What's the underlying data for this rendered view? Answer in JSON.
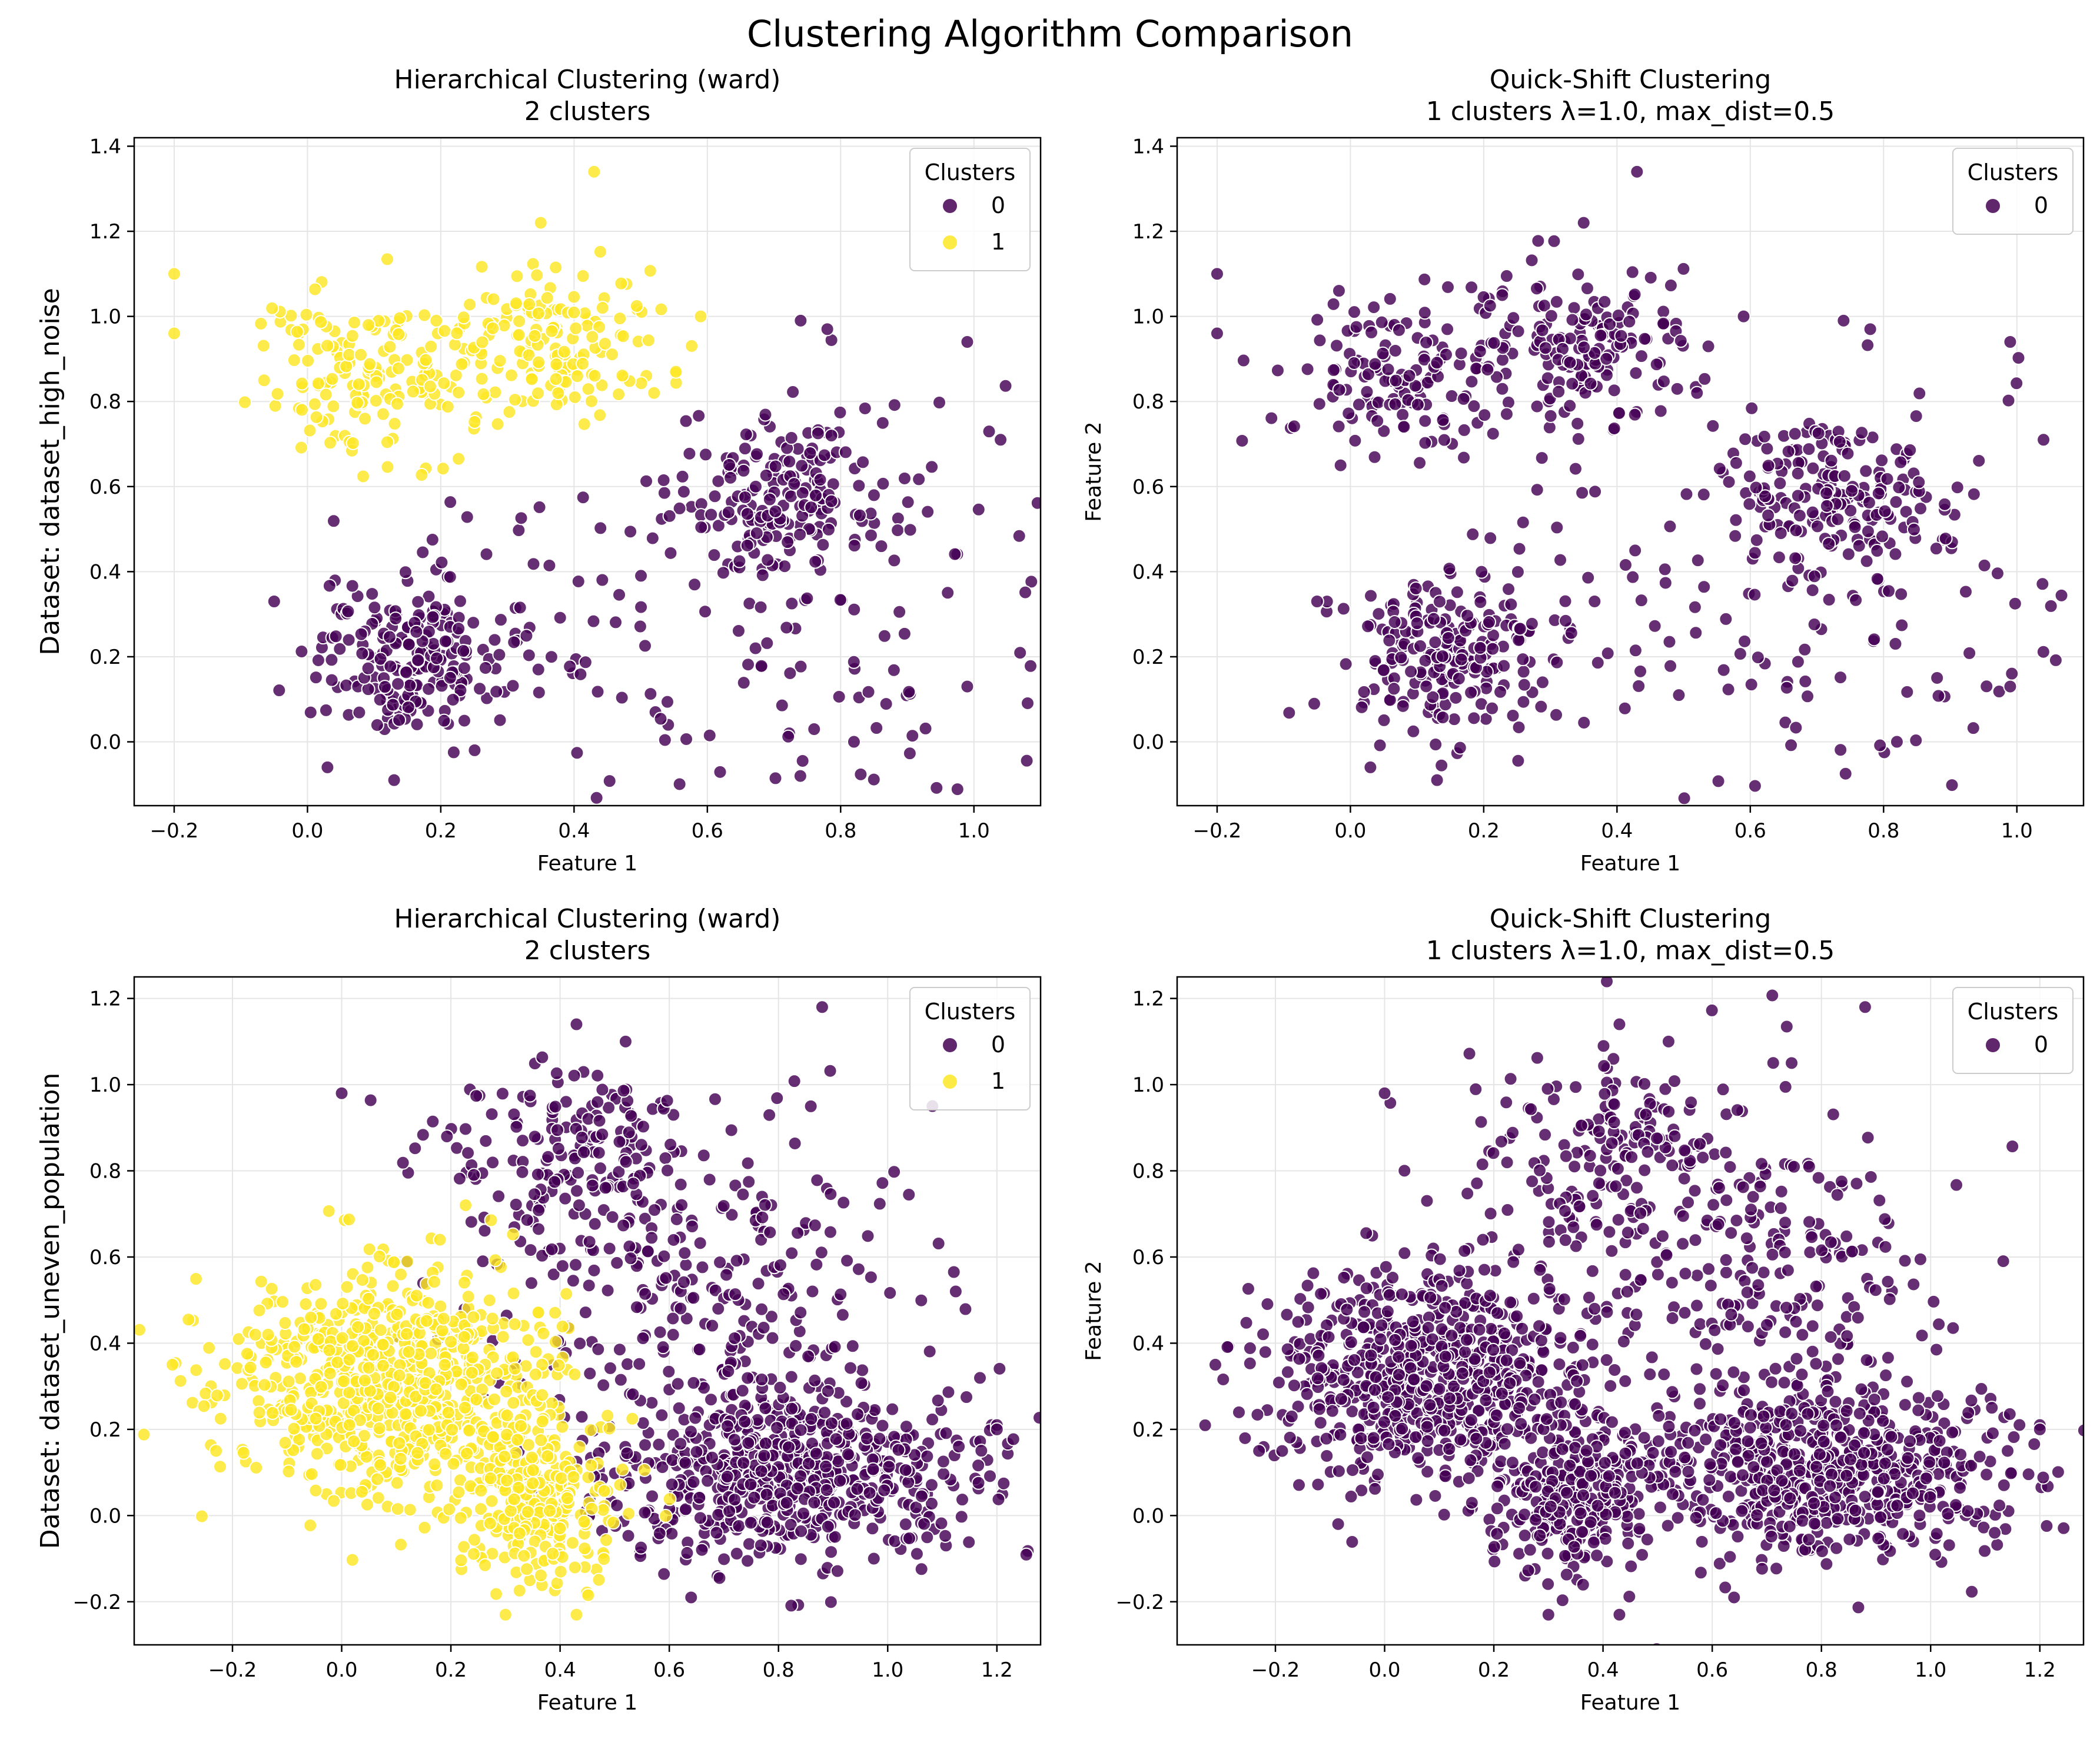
{
  "figure": {
    "suptitle": "Clustering Algorithm Comparison"
  },
  "colors": {
    "cluster_0": "#440154",
    "cluster_1": "#fde725",
    "grid": "#e5e5e5",
    "axis": "#000000",
    "marker_edge": "#ffffff"
  },
  "chart_data": [
    {
      "type": "scatter",
      "panel": "top-left",
      "title": "Hierarchical Clustering (ward)\n2 clusters",
      "xlabel": "Feature 1",
      "ylabel": "Dataset: dataset_high_noise",
      "xlim": [
        -0.26,
        1.1
      ],
      "ylim": [
        -0.15,
        1.42
      ],
      "xticks": [
        -0.2,
        0.0,
        0.2,
        0.4,
        0.6,
        0.8,
        1.0
      ],
      "xtick_labels": [
        "−0.2",
        "0.0",
        "0.2",
        "0.4",
        "0.6",
        "0.8",
        "1.0"
      ],
      "yticks": [
        0.0,
        0.2,
        0.4,
        0.6,
        0.8,
        1.0,
        1.2,
        1.4
      ],
      "ytick_labels": [
        "0.0",
        "0.2",
        "0.4",
        "0.6",
        "0.8",
        "1.0",
        "1.2",
        "1.4"
      ],
      "grid": true,
      "legend": {
        "title": "Clusters",
        "placement": "top-right",
        "entries": [
          {
            "label": "0",
            "color": "#440154"
          },
          {
            "label": "1",
            "color": "#fde725"
          }
        ]
      },
      "series": [
        {
          "name": "0",
          "color": "#440154",
          "points": [
            {
              "cx": 0.15,
              "cy": 0.2,
              "sx": 0.07,
              "sy": 0.09,
              "n": 200
            },
            {
              "cx": 0.72,
              "cy": 0.58,
              "sx": 0.08,
              "sy": 0.09,
              "n": 170
            },
            {
              "cx": 0.75,
              "cy": 0.3,
              "sx": 0.2,
              "sy": 0.25,
              "n": 110
            },
            {
              "cx": 0.4,
              "cy": 0.3,
              "sx": 0.2,
              "sy": 0.2,
              "n": 60
            }
          ],
          "samples": [
            [
              0.74,
              0.99
            ],
            [
              0.78,
              0.97
            ],
            [
              1.04,
              0.71
            ],
            [
              0.99,
              0.94
            ],
            [
              0.13,
              -0.09
            ],
            [
              0.03,
              -0.06
            ],
            [
              0.82,
              0.0
            ],
            [
              -0.05,
              0.33
            ],
            [
              0.99,
              0.13
            ]
          ]
        },
        {
          "name": "1",
          "color": "#fde725",
          "points": [
            {
              "cx": 0.08,
              "cy": 0.86,
              "sx": 0.09,
              "sy": 0.1,
              "n": 150
            },
            {
              "cx": 0.36,
              "cy": 0.93,
              "sx": 0.08,
              "sy": 0.09,
              "n": 160
            }
          ],
          "samples": [
            [
              0.43,
              1.34
            ],
            [
              0.35,
              1.22
            ],
            [
              -0.2,
              1.1
            ],
            [
              -0.2,
              0.96
            ],
            [
              0.59,
              1.0
            ],
            [
              0.52,
              0.82
            ]
          ]
        }
      ]
    },
    {
      "type": "scatter",
      "panel": "top-right",
      "title": "Quick-Shift Clustering\n1 clusters λ=1.0, max_dist=0.5",
      "xlabel": "Feature 1",
      "ylabel": "Feature 2",
      "xlim": [
        -0.26,
        1.1
      ],
      "ylim": [
        -0.15,
        1.42
      ],
      "xticks": [
        -0.2,
        0.0,
        0.2,
        0.4,
        0.6,
        0.8,
        1.0
      ],
      "xtick_labels": [
        "−0.2",
        "0.0",
        "0.2",
        "0.4",
        "0.6",
        "0.8",
        "1.0"
      ],
      "yticks": [
        0.0,
        0.2,
        0.4,
        0.6,
        0.8,
        1.0,
        1.2,
        1.4
      ],
      "ytick_labels": [
        "0.0",
        "0.2",
        "0.4",
        "0.6",
        "0.8",
        "1.0",
        "1.2",
        "1.4"
      ],
      "grid": true,
      "legend": {
        "title": "Clusters",
        "placement": "top-right",
        "entries": [
          {
            "label": "0",
            "color": "#440154"
          }
        ]
      },
      "series": [
        {
          "name": "0",
          "color": "#440154",
          "points": [
            {
              "cx": 0.15,
              "cy": 0.2,
              "sx": 0.07,
              "sy": 0.09,
              "n": 200
            },
            {
              "cx": 0.72,
              "cy": 0.58,
              "sx": 0.08,
              "sy": 0.09,
              "n": 170
            },
            {
              "cx": 0.75,
              "cy": 0.3,
              "sx": 0.2,
              "sy": 0.25,
              "n": 110
            },
            {
              "cx": 0.4,
              "cy": 0.3,
              "sx": 0.2,
              "sy": 0.2,
              "n": 60
            },
            {
              "cx": 0.08,
              "cy": 0.86,
              "sx": 0.09,
              "sy": 0.1,
              "n": 150
            },
            {
              "cx": 0.36,
              "cy": 0.93,
              "sx": 0.08,
              "sy": 0.09,
              "n": 160
            }
          ],
          "samples": [
            [
              0.74,
              0.99
            ],
            [
              0.78,
              0.97
            ],
            [
              1.04,
              0.71
            ],
            [
              0.99,
              0.94
            ],
            [
              0.13,
              -0.09
            ],
            [
              0.03,
              -0.06
            ],
            [
              0.82,
              0.0
            ],
            [
              -0.05,
              0.33
            ],
            [
              0.99,
              0.13
            ],
            [
              0.43,
              1.34
            ],
            [
              0.35,
              1.22
            ],
            [
              -0.2,
              1.1
            ],
            [
              -0.2,
              0.96
            ],
            [
              0.59,
              1.0
            ],
            [
              0.52,
              0.82
            ]
          ]
        }
      ]
    },
    {
      "type": "scatter",
      "panel": "bottom-left",
      "title": "Hierarchical Clustering (ward)\n2 clusters",
      "xlabel": "Feature 1",
      "ylabel": "Dataset: dataset_uneven_population",
      "xlim": [
        -0.38,
        1.28
      ],
      "ylim": [
        -0.3,
        1.25
      ],
      "xticks": [
        -0.2,
        0.0,
        0.2,
        0.4,
        0.6,
        0.8,
        1.0,
        1.2
      ],
      "xtick_labels": [
        "−0.2",
        "0.0",
        "0.2",
        "0.4",
        "0.6",
        "0.8",
        "1.0",
        "1.2"
      ],
      "yticks": [
        -0.2,
        0.0,
        0.2,
        0.4,
        0.6,
        0.8,
        1.0,
        1.2
      ],
      "ytick_labels": [
        "−0.2",
        "0.0",
        "0.2",
        "0.4",
        "0.6",
        "0.8",
        "1.0",
        "1.2"
      ],
      "grid": true,
      "legend": {
        "title": "Clusters",
        "placement": "top-right",
        "entries": [
          {
            "label": "0",
            "color": "#440154"
          },
          {
            "label": "1",
            "color": "#fde725"
          }
        ]
      },
      "series": [
        {
          "name": "0",
          "color": "#440154",
          "points": [
            {
              "cx": 0.82,
              "cy": 0.1,
              "sx": 0.16,
              "sy": 0.1,
              "n": 650
            },
            {
              "cx": 0.45,
              "cy": 0.87,
              "sx": 0.1,
              "sy": 0.1,
              "n": 120
            },
            {
              "cx": 0.65,
              "cy": 0.55,
              "sx": 0.2,
              "sy": 0.2,
              "n": 260
            },
            {
              "cx": 0.3,
              "cy": 0.8,
              "sx": 0.12,
              "sy": 0.12,
              "n": 40
            }
          ],
          "samples": [
            [
              0.88,
              1.18
            ],
            [
              1.2,
              0.21
            ],
            [
              1.2,
              0.2
            ],
            [
              0.43,
              1.14
            ],
            [
              0.52,
              1.1
            ],
            [
              0.0,
              0.98
            ],
            [
              0.64,
              -0.19
            ]
          ]
        },
        {
          "name": "1",
          "color": "#fde725",
          "points": [
            {
              "cx": 0.08,
              "cy": 0.32,
              "sx": 0.14,
              "sy": 0.13,
              "n": 700
            },
            {
              "cx": 0.35,
              "cy": 0.05,
              "sx": 0.08,
              "sy": 0.1,
              "n": 300
            }
          ],
          "samples": [
            [
              -0.31,
              0.35
            ],
            [
              -0.23,
              0.15
            ],
            [
              0.3,
              -0.23
            ],
            [
              0.43,
              -0.23
            ],
            [
              0.18,
              0.64
            ]
          ]
        }
      ]
    },
    {
      "type": "scatter",
      "panel": "bottom-right",
      "title": "Quick-Shift Clustering\n1 clusters λ=1.0, max_dist=0.5",
      "xlabel": "Feature 1",
      "ylabel": "Feature 2",
      "xlim": [
        -0.38,
        1.28
      ],
      "ylim": [
        -0.3,
        1.25
      ],
      "xticks": [
        -0.2,
        0.0,
        0.2,
        0.4,
        0.6,
        0.8,
        1.0,
        1.2
      ],
      "xtick_labels": [
        "−0.2",
        "0.0",
        "0.2",
        "0.4",
        "0.6",
        "0.8",
        "1.0",
        "1.2"
      ],
      "yticks": [
        -0.2,
        0.0,
        0.2,
        0.4,
        0.6,
        0.8,
        1.0,
        1.2
      ],
      "ytick_labels": [
        "−0.2",
        "0.0",
        "0.2",
        "0.4",
        "0.6",
        "0.8",
        "1.0",
        "1.2"
      ],
      "grid": true,
      "legend": {
        "title": "Clusters",
        "placement": "top-right",
        "entries": [
          {
            "label": "0",
            "color": "#440154"
          }
        ]
      },
      "series": [
        {
          "name": "0",
          "color": "#440154",
          "points": [
            {
              "cx": 0.82,
              "cy": 0.1,
              "sx": 0.16,
              "sy": 0.1,
              "n": 650
            },
            {
              "cx": 0.45,
              "cy": 0.87,
              "sx": 0.1,
              "sy": 0.1,
              "n": 120
            },
            {
              "cx": 0.65,
              "cy": 0.55,
              "sx": 0.2,
              "sy": 0.2,
              "n": 260
            },
            {
              "cx": 0.3,
              "cy": 0.8,
              "sx": 0.12,
              "sy": 0.12,
              "n": 40
            },
            {
              "cx": 0.08,
              "cy": 0.32,
              "sx": 0.14,
              "sy": 0.13,
              "n": 700
            },
            {
              "cx": 0.35,
              "cy": 0.05,
              "sx": 0.08,
              "sy": 0.1,
              "n": 300
            }
          ],
          "samples": [
            [
              0.88,
              1.18
            ],
            [
              1.2,
              0.21
            ],
            [
              1.2,
              0.2
            ],
            [
              0.43,
              1.14
            ],
            [
              0.52,
              1.1
            ],
            [
              0.0,
              0.98
            ],
            [
              0.64,
              -0.19
            ],
            [
              -0.31,
              0.35
            ],
            [
              -0.23,
              0.15
            ],
            [
              0.3,
              -0.23
            ],
            [
              0.43,
              -0.23
            ],
            [
              0.18,
              0.64
            ]
          ]
        }
      ]
    }
  ]
}
